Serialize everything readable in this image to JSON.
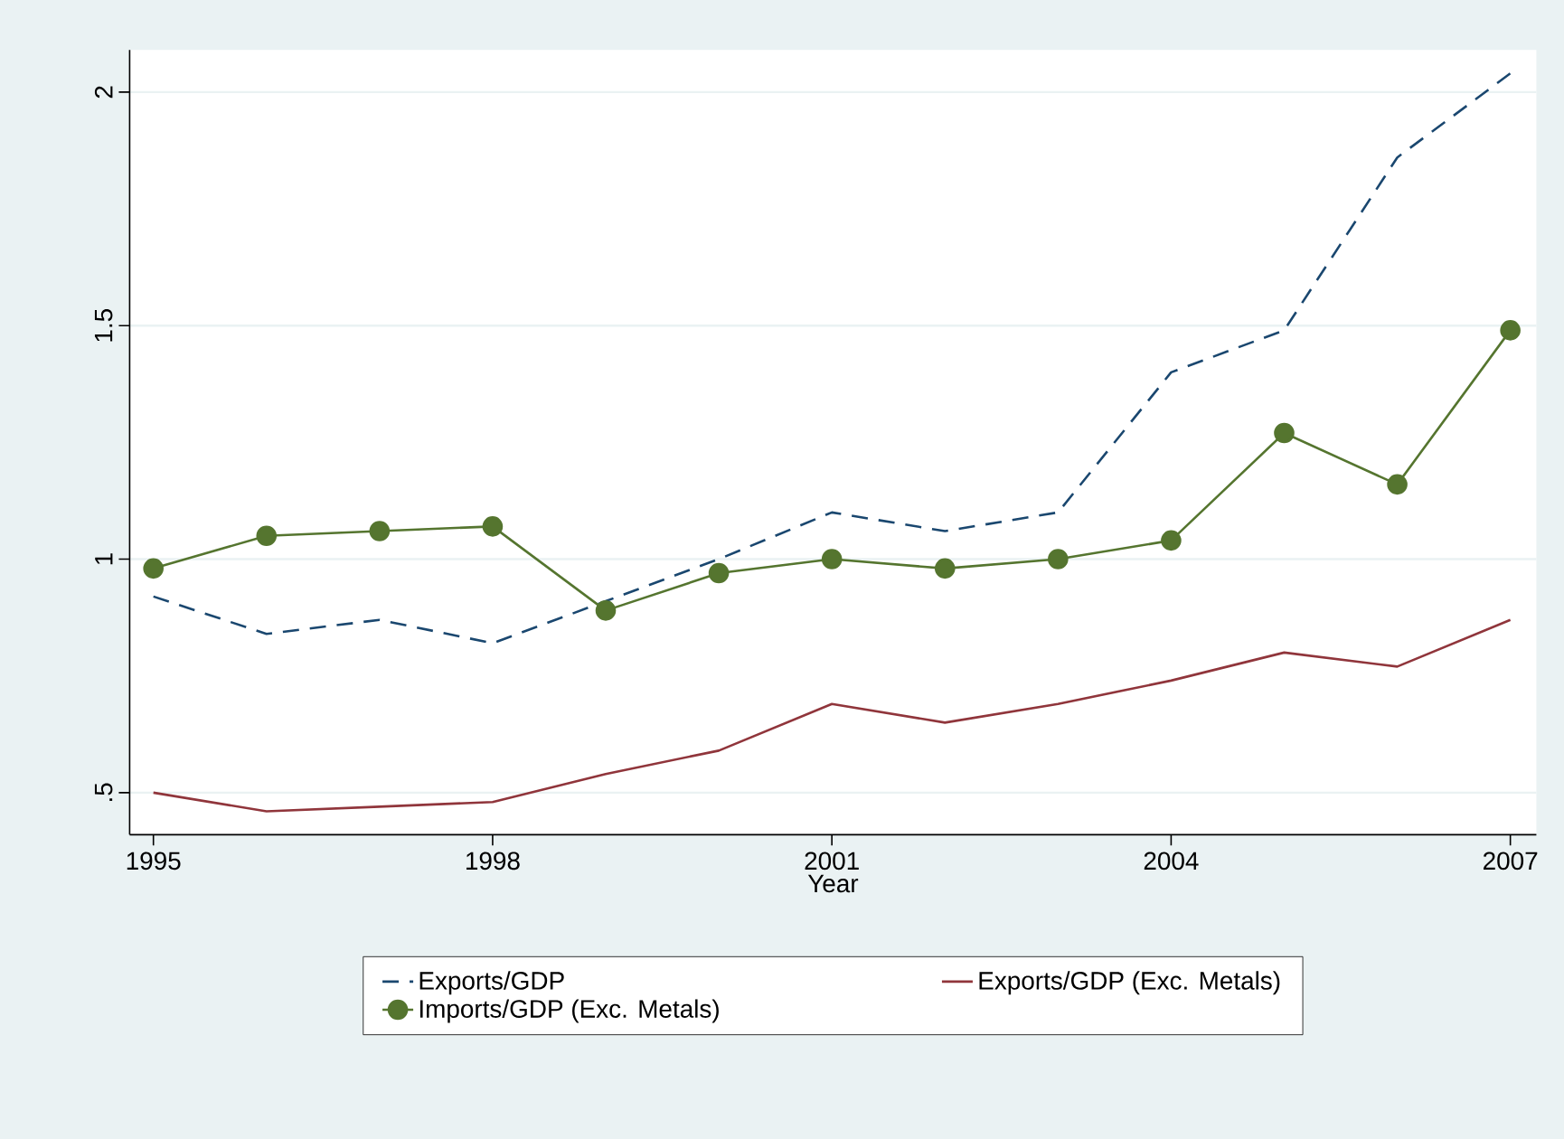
{
  "chart_data": {
    "type": "line",
    "xlabel": "Year",
    "x": [
      1995,
      1996,
      1997,
      1998,
      1999,
      2000,
      2001,
      2002,
      2003,
      2004,
      2005,
      2006,
      2007
    ],
    "series": [
      {
        "name": "Exports/GDP",
        "color": "#1a476f",
        "line_style": "dashed",
        "marker": "none",
        "values": [
          0.92,
          0.84,
          0.87,
          0.82,
          0.91,
          1.0,
          1.1,
          1.06,
          1.1,
          1.4,
          1.49,
          1.86,
          2.04
        ]
      },
      {
        "name": "Exports/GDP (Exc. Metals)",
        "color": "#90353b",
        "line_style": "solid",
        "marker": "none",
        "values": [
          0.5,
          0.46,
          0.47,
          0.48,
          0.54,
          0.59,
          0.69,
          0.65,
          0.69,
          0.74,
          0.8,
          0.77,
          0.87
        ]
      },
      {
        "name": "Imports/GDP (Exc. Metals)",
        "color": "#55752f",
        "line_style": "solid",
        "marker": "circle",
        "values": [
          0.98,
          1.05,
          1.06,
          1.07,
          0.89,
          0.97,
          1.0,
          0.98,
          1.0,
          1.04,
          1.27,
          1.16,
          1.49
        ]
      }
    ],
    "xlim": [
      1994.79,
      2007.23
    ],
    "ylim": [
      0.41,
      2.09
    ],
    "xticks": [
      1995,
      1998,
      2001,
      2004,
      2007
    ],
    "yticks": [
      {
        "value": 0.5,
        "label": ".5"
      },
      1,
      1.5,
      2
    ],
    "grid": "y",
    "legend": "bottom"
  }
}
